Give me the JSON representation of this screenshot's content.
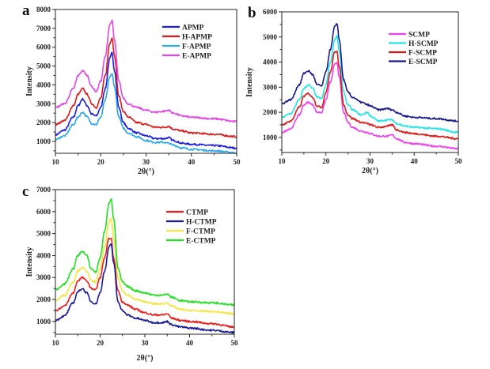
{
  "chart_data": [
    {
      "panel_label": "a",
      "type": "line",
      "xlabel": "2θ(°)",
      "ylabel": "Intensity",
      "xlim": [
        10,
        50
      ],
      "ylim": [
        370,
        8000
      ],
      "xticks": [
        10,
        20,
        30,
        40,
        50
      ],
      "yticks": [
        1000,
        2000,
        3000,
        4000,
        5000,
        6000,
        7000,
        8000
      ],
      "legend_position": "top-right",
      "x": [
        10,
        12,
        14,
        15,
        16,
        17,
        18,
        19,
        20,
        21,
        22,
        22.5,
        23,
        24,
        25,
        26,
        28,
        30,
        32,
        34,
        35,
        36,
        38,
        40,
        45,
        50
      ],
      "series": [
        {
          "name": "APMP",
          "color": "#1c1ce0",
          "values": [
            1350,
            1600,
            2300,
            2900,
            3250,
            2900,
            2450,
            2350,
            2800,
            3800,
            5400,
            5700,
            4800,
            2800,
            2000,
            1700,
            1450,
            1300,
            1150,
            1150,
            1200,
            1050,
            900,
            850,
            780,
            650
          ]
        },
        {
          "name": "H-APMP",
          "color": "#e01818",
          "values": [
            1900,
            2100,
            2900,
            3500,
            3800,
            3500,
            3000,
            2800,
            3300,
            4500,
            6200,
            6500,
            5600,
            3400,
            2600,
            2300,
            2000,
            1900,
            1750,
            1750,
            1800,
            1650,
            1550,
            1450,
            1380,
            1250
          ]
        },
        {
          "name": "F-APMP",
          "color": "#2aa8ea",
          "values": [
            1100,
            1300,
            1900,
            2300,
            2550,
            2300,
            1950,
            1900,
            2300,
            3200,
            4400,
            4600,
            3900,
            2300,
            1700,
            1450,
            1250,
            1050,
            950,
            950,
            900,
            800,
            650,
            580,
            500,
            400
          ]
        },
        {
          "name": "E-APMP",
          "color": "#e447e4",
          "values": [
            2800,
            3000,
            3800,
            4500,
            4750,
            4500,
            3900,
            3650,
            4200,
            5500,
            7200,
            7400,
            6400,
            4200,
            3300,
            3000,
            2800,
            2650,
            2550,
            2600,
            2650,
            2500,
            2350,
            2280,
            2200,
            2050
          ]
        }
      ]
    },
    {
      "panel_label": "b",
      "type": "line",
      "xlabel": "2θ(°)",
      "ylabel": "Intensity",
      "xlim": [
        10,
        50
      ],
      "ylim": [
        400,
        6000
      ],
      "xticks": [
        10,
        20,
        30,
        40,
        50
      ],
      "yticks": [
        1000,
        2000,
        3000,
        4000,
        5000,
        6000
      ],
      "legend_position": "top-right",
      "x": [
        10,
        12,
        14,
        15,
        16,
        17,
        18,
        19,
        20,
        21,
        22,
        22.5,
        23,
        24,
        25,
        26,
        28,
        29.5,
        30,
        32,
        34,
        35,
        36,
        38,
        40,
        45,
        50
      ],
      "series": [
        {
          "name": "SCMP",
          "color": "#f040f0",
          "values": [
            1200,
            1350,
            1900,
            2300,
            2400,
            2300,
            2000,
            2000,
            2500,
            3200,
            3900,
            4000,
            3400,
            2000,
            1600,
            1400,
            1250,
            1200,
            1150,
            1050,
            1050,
            1100,
            950,
            800,
            750,
            650,
            550
          ]
        },
        {
          "name": "H-SCMP",
          "color": "#22e6e6",
          "values": [
            1800,
            1950,
            2500,
            2950,
            3100,
            2950,
            2600,
            2550,
            3100,
            4000,
            4900,
            5050,
            4400,
            2800,
            2300,
            2100,
            1900,
            2000,
            1850,
            1650,
            1700,
            1700,
            1550,
            1450,
            1400,
            1350,
            1200
          ]
        },
        {
          "name": "F-SCMP",
          "color": "#e01818",
          "values": [
            1500,
            1650,
            2200,
            2650,
            2750,
            2600,
            2250,
            2200,
            2800,
            3600,
            4400,
            4450,
            3800,
            2300,
            1900,
            1750,
            1600,
            1550,
            1500,
            1400,
            1450,
            1500,
            1300,
            1200,
            1150,
            1050,
            950
          ]
        },
        {
          "name": "E-SCMP",
          "color": "#1a1a90",
          "values": [
            2350,
            2500,
            3100,
            3550,
            3650,
            3500,
            3100,
            3050,
            3600,
            4500,
            5400,
            5550,
            4900,
            3300,
            2800,
            2600,
            2400,
            2300,
            2250,
            2100,
            2150,
            2100,
            2000,
            1850,
            1800,
            1750,
            1650
          ]
        }
      ]
    },
    {
      "panel_label": "c",
      "type": "line",
      "xlabel": "2θ(°)",
      "ylabel": "Intensity",
      "xlim": [
        10,
        50
      ],
      "ylim": [
        420,
        7000
      ],
      "xticks": [
        10,
        20,
        30,
        40,
        50
      ],
      "yticks": [
        1000,
        2000,
        3000,
        4000,
        5000,
        6000,
        7000
      ],
      "legend_position": "top-right",
      "x": [
        10,
        12,
        14,
        15,
        16,
        17,
        18,
        19,
        20,
        21,
        22,
        22.5,
        23,
        24,
        25,
        26,
        28,
        30,
        32,
        34,
        35,
        36,
        38,
        40,
        45,
        50
      ],
      "series": [
        {
          "name": "CTMP",
          "color": "#f01c1c",
          "values": [
            1500,
            1700,
            2300,
            2850,
            3000,
            2850,
            2500,
            2450,
            3000,
            3900,
            4800,
            4750,
            3900,
            2400,
            1900,
            1750,
            1550,
            1400,
            1300,
            1300,
            1350,
            1150,
            1050,
            1000,
            900,
            750
          ]
        },
        {
          "name": "H-CTMP",
          "color": "#1a1a9a",
          "values": [
            1050,
            1250,
            1850,
            2350,
            2500,
            2300,
            1900,
            1800,
            2300,
            3300,
            4400,
            4500,
            3700,
            1900,
            1500,
            1300,
            1150,
            1050,
            950,
            950,
            1000,
            850,
            750,
            700,
            600,
            500
          ]
        },
        {
          "name": "F-CTMP",
          "color": "#f4e640",
          "values": [
            1950,
            2200,
            2800,
            3300,
            3450,
            3300,
            2850,
            2800,
            3400,
            4400,
            5500,
            5700,
            4800,
            3000,
            2400,
            2200,
            2000,
            1900,
            1800,
            1800,
            1850,
            1700,
            1550,
            1500,
            1450,
            1350
          ]
        },
        {
          "name": "E-CTMP",
          "color": "#22e022",
          "values": [
            2450,
            2700,
            3400,
            4000,
            4200,
            4000,
            3400,
            3250,
            3900,
            5100,
            6400,
            6600,
            5700,
            3400,
            2800,
            2600,
            2400,
            2300,
            2200,
            2200,
            2250,
            2100,
            1950,
            1900,
            1850,
            1750
          ]
        }
      ]
    }
  ]
}
